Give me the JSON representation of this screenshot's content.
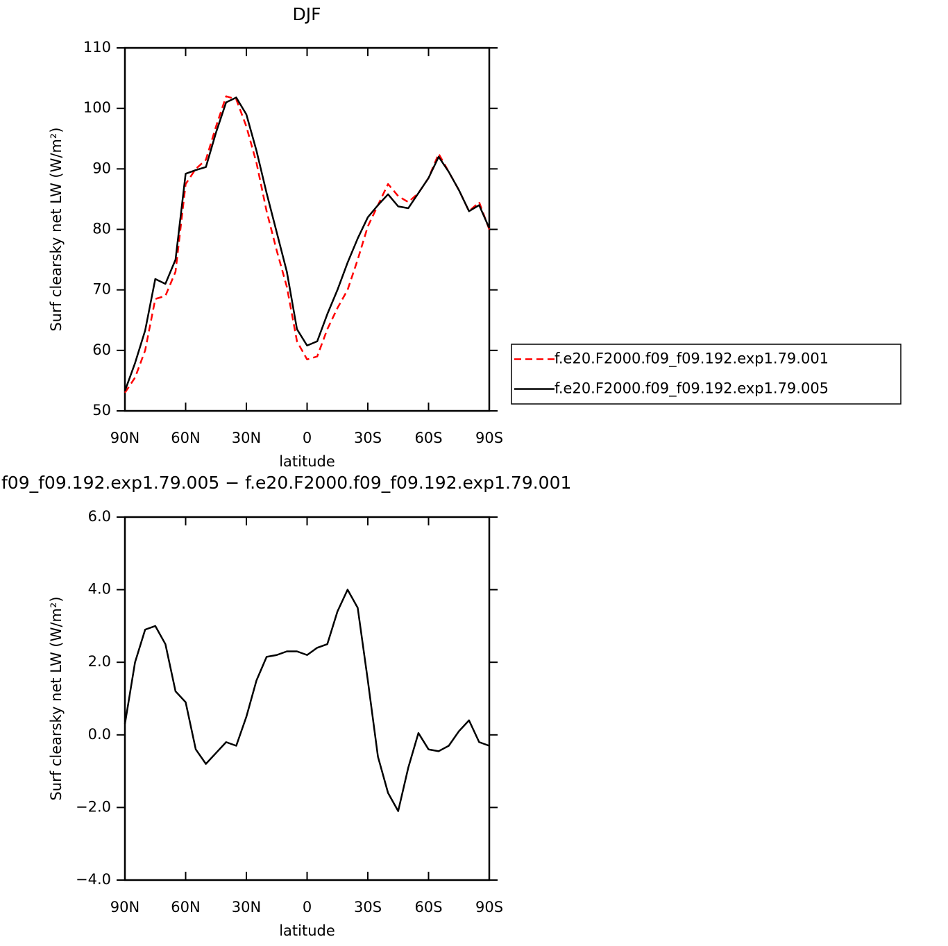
{
  "chart_data": [
    {
      "type": "line",
      "title": "DJF",
      "xlabel": "latitude",
      "ylabel": "Surf clearsky net LW (W/m²)",
      "x": [
        90,
        85,
        80,
        75,
        70,
        65,
        60,
        55,
        50,
        45,
        40,
        35,
        30,
        25,
        20,
        15,
        10,
        5,
        0,
        -5,
        -10,
        -15,
        -20,
        -25,
        -30,
        -35,
        -40,
        -45,
        -50,
        -55,
        -60,
        -65,
        -70,
        -75,
        -80,
        -85,
        -90
      ],
      "series": [
        {
          "name": "f.e20.F2000.f09_f09.192.exp1.79.001",
          "color": "#ff0000",
          "line_style": "dashed",
          "values": [
            53,
            55.5,
            60,
            68.5,
            69,
            73,
            87.5,
            90,
            91.5,
            97,
            102,
            101.5,
            97,
            91,
            83,
            76.5,
            70.5,
            61.5,
            58.5,
            59,
            63.5,
            67,
            70,
            75,
            80.5,
            84,
            87.5,
            85.5,
            84.5,
            86,
            88.5,
            92.5,
            89.5,
            86.5,
            83,
            84.5,
            80
          ]
        },
        {
          "name": "f.e20.F2000.f09_f09.192.exp1.79.005",
          "color": "#000000",
          "line_style": "solid",
          "values": [
            53.3,
            57.9,
            63.3,
            71.8,
            71,
            75,
            89.2,
            89.8,
            90.3,
            96,
            101,
            101.8,
            99,
            93,
            86,
            79.5,
            73,
            63.5,
            60.8,
            61.5,
            66,
            70,
            74.5,
            78.5,
            82,
            84,
            85.8,
            83.8,
            83.5,
            86,
            88.5,
            92,
            89.5,
            86.5,
            83,
            84,
            80.2
          ]
        }
      ],
      "xlim": [
        90,
        -90
      ],
      "xticks": [
        {
          "value": 90,
          "label": "90N"
        },
        {
          "value": 60,
          "label": "60N"
        },
        {
          "value": 30,
          "label": "30N"
        },
        0,
        {
          "value": -30,
          "label": "30S"
        },
        {
          "value": -60,
          "label": "60S"
        },
        {
          "value": -90,
          "label": "90S"
        }
      ],
      "ylim": [
        50,
        110
      ],
      "yticks": [
        50,
        60,
        70,
        80,
        90,
        100,
        110
      ],
      "legend": "right"
    },
    {
      "type": "line",
      "title": "f09_f09.192.exp1.79.005 − f.e20.F2000.f09_f09.192.exp1.79.001",
      "xlabel": "latitude",
      "ylabel": "Surf clearsky net LW (W/m²)",
      "x": [
        90,
        85,
        80,
        75,
        70,
        65,
        60,
        55,
        50,
        45,
        40,
        35,
        30,
        25,
        20,
        15,
        10,
        5,
        0,
        -5,
        -10,
        -15,
        -20,
        -25,
        -30,
        -35,
        -40,
        -45,
        -50,
        -55,
        -60,
        -65,
        -70,
        -75,
        -80,
        -85,
        -90
      ],
      "series": [
        {
          "color": "#000000",
          "line_style": "solid",
          "values": [
            0.3,
            2.0,
            2.9,
            3.0,
            2.5,
            1.2,
            0.9,
            -0.4,
            -0.8,
            -0.5,
            -0.2,
            -0.3,
            0.5,
            1.5,
            2.15,
            2.2,
            2.3,
            2.3,
            2.2,
            2.4,
            2.5,
            3.4,
            4.0,
            3.5,
            1.5,
            -0.6,
            -1.6,
            -2.1,
            -0.9,
            0.05,
            -0.4,
            -0.45,
            -0.3,
            0.1,
            0.4,
            -0.2,
            -0.3
          ]
        }
      ],
      "xlim": [
        90,
        -90
      ],
      "xticks": [
        {
          "value": 90,
          "label": "90N"
        },
        {
          "value": 60,
          "label": "60N"
        },
        {
          "value": 30,
          "label": "30N"
        },
        0,
        {
          "value": -30,
          "label": "30S"
        },
        {
          "value": -60,
          "label": "60S"
        },
        {
          "value": -90,
          "label": "90S"
        }
      ],
      "ylim": [
        -4,
        6
      ],
      "yticks": [
        {
          "value": -4,
          "label": "−4.0"
        },
        {
          "value": -2,
          "label": "−2.0"
        },
        {
          "value": 0,
          "label": "0.0"
        },
        {
          "value": 2,
          "label": "2.0"
        },
        {
          "value": 4,
          "label": "4.0"
        },
        {
          "value": 6,
          "label": "6.0"
        }
      ]
    }
  ]
}
